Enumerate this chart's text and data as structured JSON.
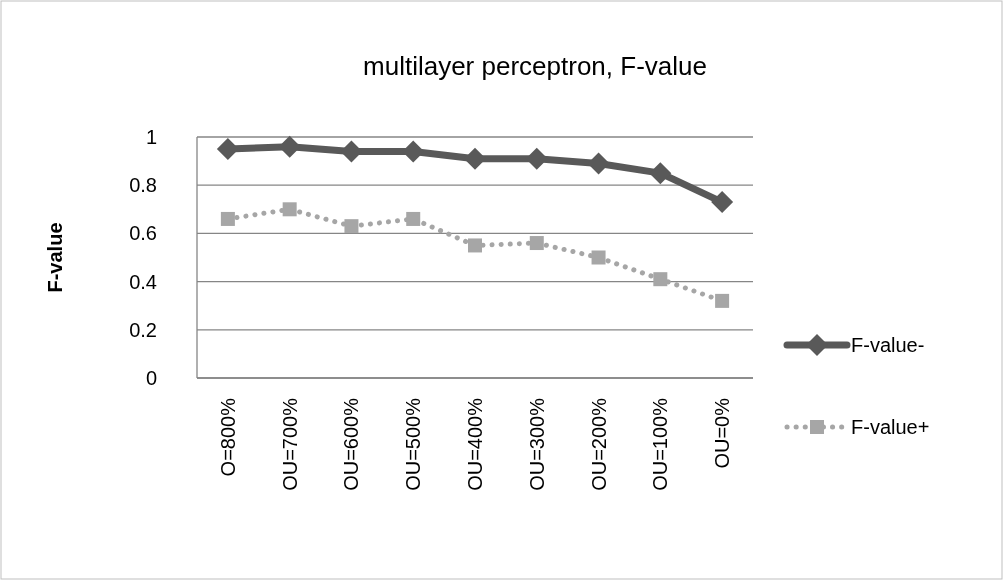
{
  "chart_data": {
    "type": "line",
    "title": "multilayer perceptron, F-value",
    "ylabel": "F-value",
    "categories": [
      "O=800%",
      "OU=700%",
      "OU=600%",
      "OU=500%",
      "OU=400%",
      "OU=300%",
      "OU=200%",
      "OU=100%",
      "OU=0%"
    ],
    "series": [
      {
        "name": "F-value-",
        "color": "#595959",
        "marker": "diamond",
        "line_style": "solid",
        "values": [
          0.95,
          0.96,
          0.94,
          0.94,
          0.91,
          0.91,
          0.89,
          0.85,
          0.73
        ]
      },
      {
        "name": "F-value+",
        "color": "#a6a6a6",
        "marker": "square",
        "line_style": "dotted",
        "values": [
          0.66,
          0.7,
          0.63,
          0.66,
          0.55,
          0.56,
          0.5,
          0.41,
          0.32
        ]
      }
    ],
    "ylim": [
      0,
      1
    ],
    "yticks": [
      0,
      0.2,
      0.4,
      0.6,
      0.8,
      1
    ],
    "grid": "y",
    "legend": "right"
  }
}
